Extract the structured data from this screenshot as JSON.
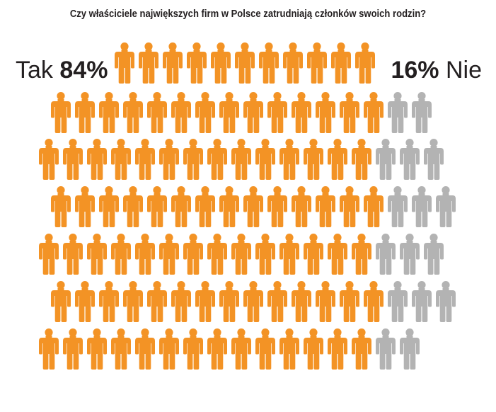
{
  "chart_data": {
    "type": "pictogram",
    "title": "Czy właściciele największych firm w Polsce zatrudniają członków swoich rodzin?",
    "categories": [
      "Tak",
      "Nie"
    ],
    "values": [
      84,
      16
    ],
    "unit": "%",
    "labels": {
      "yes": {
        "word": "Tak",
        "value": "84%"
      },
      "no": {
        "word": "Nie",
        "value": "16%"
      }
    },
    "rows": [
      {
        "yes": 11,
        "no": 0
      },
      {
        "yes": 14,
        "no": 2
      },
      {
        "yes": 14,
        "no": 3
      },
      {
        "yes": 14,
        "no": 3
      },
      {
        "yes": 14,
        "no": 3
      },
      {
        "yes": 14,
        "no": 3
      },
      {
        "yes": 14,
        "no": 2
      }
    ],
    "colors": {
      "yes": "#f39325",
      "no": "#b3b3b3",
      "text": "#231f20"
    }
  }
}
